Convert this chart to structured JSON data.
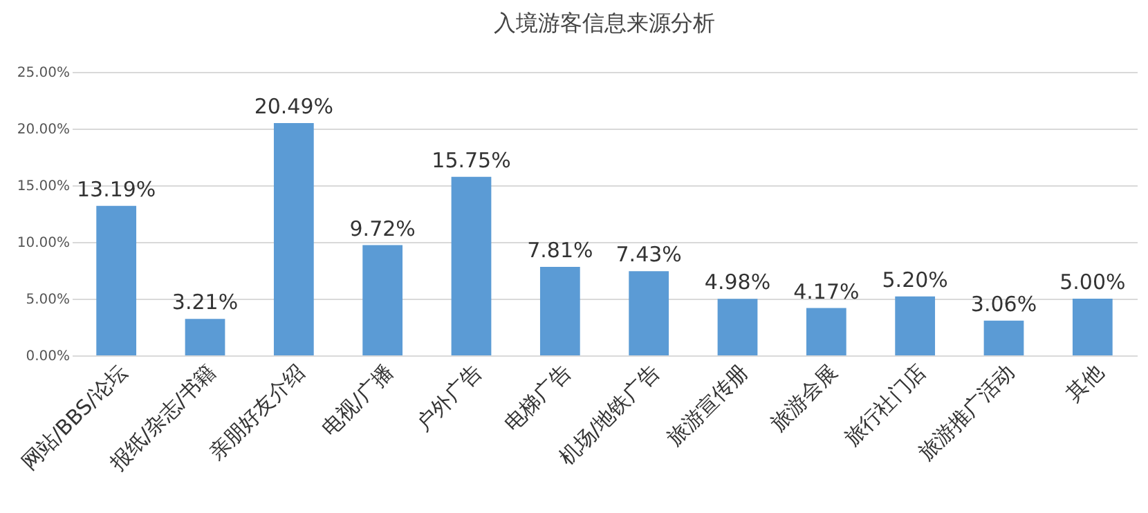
{
  "chart_data": {
    "type": "bar",
    "title": "入境游客信息来源分析",
    "categories": [
      "网站/BBS/论坛",
      "报纸/杂志/书籍",
      "亲朋好友介绍",
      "电视/广播",
      "户外广告",
      "电梯广告",
      "机场/地铁广告",
      "旅游宣传册",
      "旅游会展",
      "旅行社门店",
      "旅游推广活动",
      "其他"
    ],
    "values": [
      13.19,
      3.21,
      20.49,
      9.72,
      15.75,
      7.81,
      7.43,
      4.98,
      4.17,
      5.2,
      3.06,
      5.0
    ],
    "value_labels": [
      "13.19%",
      "3.21%",
      "20.49%",
      "9.72%",
      "15.75%",
      "7.81%",
      "7.43%",
      "4.98%",
      "4.17%",
      "5.20%",
      "3.06%",
      "5.00%"
    ],
    "color": "#5b9bd5",
    "ylim": [
      0,
      25
    ],
    "yticks": [
      {
        "value": 0,
        "label": "0.00%"
      },
      {
        "value": 5,
        "label": "5.00%"
      },
      {
        "value": 10,
        "label": "10.00%"
      },
      {
        "value": 15,
        "label": "15.00%"
      },
      {
        "value": 20,
        "label": "20.00%"
      },
      {
        "value": 25,
        "label": "25.00%"
      }
    ],
    "grid": "y"
  }
}
